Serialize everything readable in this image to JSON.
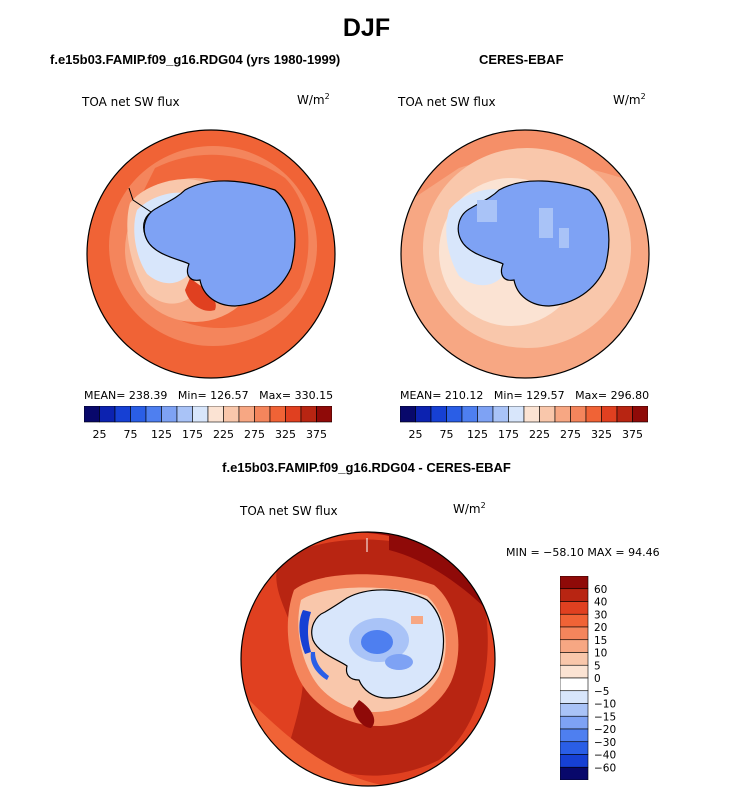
{
  "title": "DJF",
  "colors": {
    "ramp_full": [
      "#08086b",
      "#0c22b0",
      "#1640d4",
      "#2a5ee6",
      "#4e7ff0",
      "#7ea2f4",
      "#a9c3f7",
      "#d8e6fb",
      "#fbe3d3",
      "#f9c7ab",
      "#f7a783",
      "#f4855c",
      "#f06336",
      "#e04020",
      "#b82512",
      "#8f0a08"
    ],
    "land_blue": "#7ea2f4",
    "coast": "#000000"
  },
  "panels": [
    {
      "header": "f.e15b03.FAMIP.f09_g16.RDG04 (yrs 1980-1999)",
      "variable": "TOA net SW flux",
      "units": "W/m",
      "units_exp": "2",
      "stats": {
        "mean_label": "MEAN=",
        "mean": "238.39",
        "min_label": "Min=",
        "min": "126.57",
        "max_label": "Max=",
        "max": "330.15"
      },
      "colorbar_ticks": [
        "25",
        "75",
        "125",
        "175",
        "225",
        "275",
        "325",
        "375"
      ]
    },
    {
      "header": "CERES-EBAF",
      "variable": "TOA net SW flux",
      "units": "W/m",
      "units_exp": "2",
      "stats": {
        "mean_label": "MEAN=",
        "mean": "210.12",
        "min_label": "Min=",
        "min": "129.57",
        "max_label": "Max=",
        "max": "296.80"
      },
      "colorbar_ticks": [
        "25",
        "75",
        "125",
        "175",
        "225",
        "275",
        "325",
        "375"
      ]
    },
    {
      "header": "f.e15b03.FAMIP.f09_g16.RDG04 - CERES-EBAF",
      "variable": "TOA net SW flux",
      "units": "W/m",
      "units_exp": "2",
      "minmax_text": "MIN = −58.10 MAX =  94.46",
      "colorbar_ticks": [
        "60",
        "40",
        "30",
        "20",
        "15",
        "10",
        "5",
        "0",
        "−5",
        "−10",
        "−15",
        "−20",
        "−30",
        "−40",
        "−60"
      ]
    }
  ]
}
